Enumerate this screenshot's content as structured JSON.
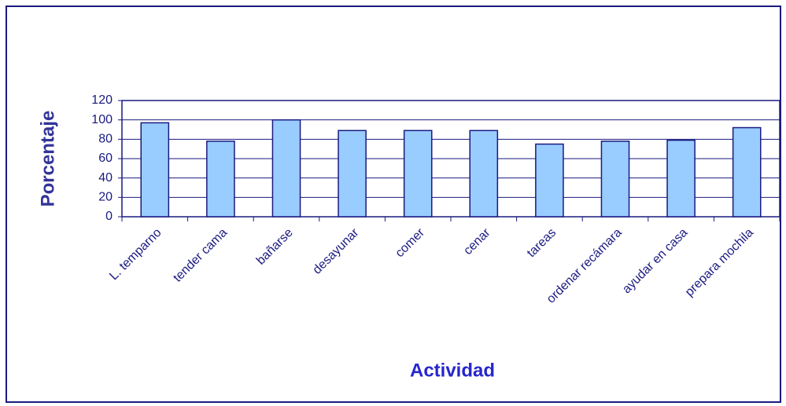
{
  "chart_data": {
    "type": "bar",
    "x_label": "Actividad",
    "y_label": "Porcentaje",
    "categories": [
      "L. temparno",
      "tender cama",
      "bañarse",
      "desayunar",
      "comer",
      "cenar",
      "tareas",
      "ordenar recámara",
      "ayudar en casa",
      "prepara mochila"
    ],
    "values": [
      97,
      78,
      100,
      89,
      89,
      89,
      75,
      78,
      79,
      92
    ],
    "color": "#99ccff",
    "ylim": [
      0,
      120
    ],
    "yticks": [
      0,
      20,
      40,
      60,
      80,
      100,
      120
    ],
    "grid": true
  }
}
